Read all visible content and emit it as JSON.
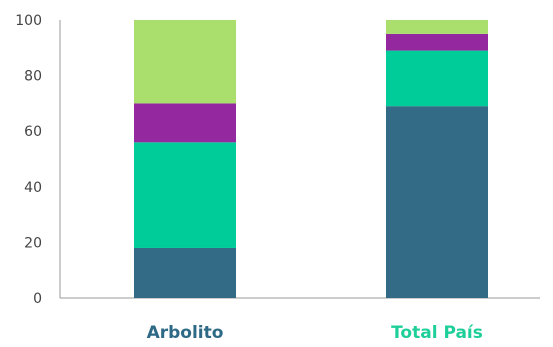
{
  "chart_data": {
    "type": "bar",
    "stacked": true,
    "categories": [
      "Arbolito",
      "Total País"
    ],
    "category_label_colors": [
      "#2e6a85",
      "#1fcf99"
    ],
    "series": [
      {
        "values": [
          18,
          69
        ],
        "color": "#336b86"
      },
      {
        "values": [
          38,
          20
        ],
        "color": "#00cc99"
      },
      {
        "values": [
          14,
          6
        ],
        "color": "#93289f"
      },
      {
        "values": [
          30,
          5
        ],
        "color": "#aadf6d"
      }
    ],
    "y_ticks": [
      0,
      20,
      40,
      60,
      80,
      100
    ],
    "ylim": [
      0,
      100
    ],
    "grid": false,
    "title": "",
    "xlabel": "",
    "ylabel": ""
  }
}
